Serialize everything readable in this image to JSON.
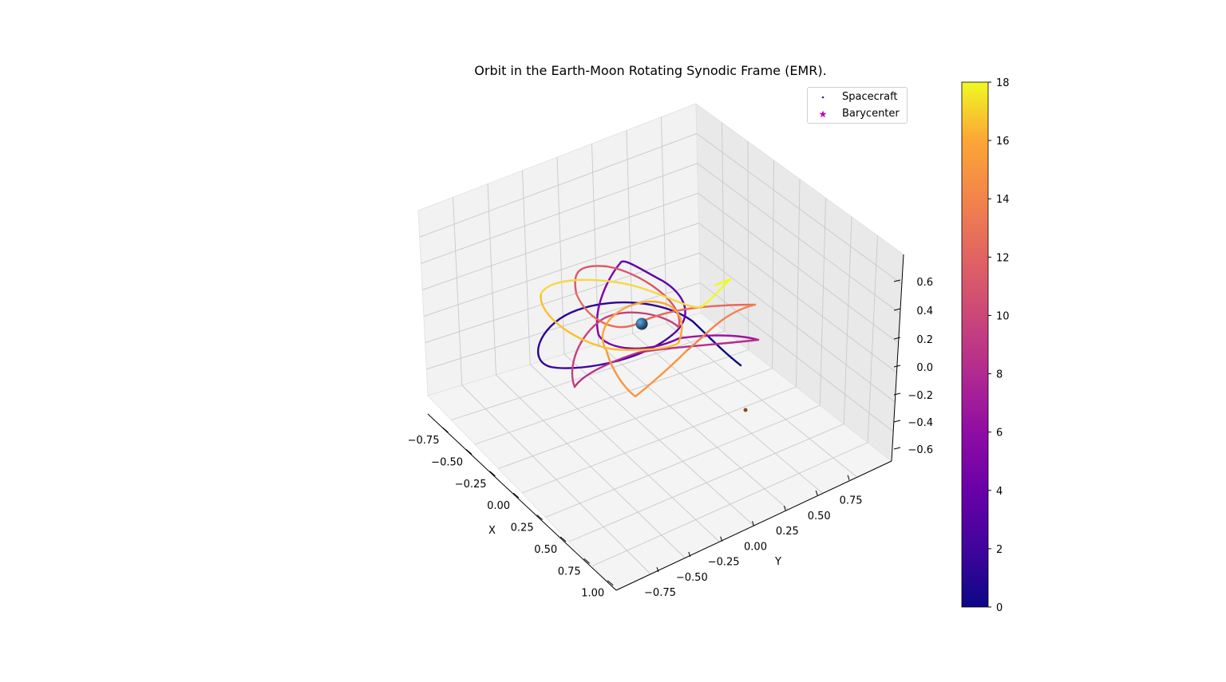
{
  "chart_data": {
    "type": "scatter",
    "projection": "3d",
    "title": "Orbit in the Earth-Moon Rotating Synodic Frame (EMR).",
    "xlabel": "X",
    "ylabel": "Y",
    "zlabel": "",
    "xlim": [
      -0.8,
      1.05
    ],
    "ylim": [
      -0.85,
      0.85
    ],
    "zlim": [
      -0.68,
      0.7
    ],
    "xticks": [
      "−0.75",
      "−0.50",
      "−0.25",
      "0.00",
      "0.25",
      "0.50",
      "0.75",
      "1.00"
    ],
    "yticks": [
      "−0.75",
      "−0.50",
      "−0.25",
      "0.00",
      "0.25",
      "0.50",
      "0.75"
    ],
    "zticks": [
      "−0.6",
      "−0.4",
      "−0.2",
      "0.0",
      "0.2",
      "0.4",
      "0.6"
    ],
    "grid": true,
    "legend": {
      "position": "top-right",
      "entries": [
        {
          "name": "Spacecraft",
          "marker": "dot",
          "color": "#2a2a8a"
        },
        {
          "name": "Barycenter",
          "marker": "star",
          "color": "#bf00bf"
        }
      ]
    },
    "colorbar": {
      "colormap": "plasma",
      "min": 0,
      "max": 18,
      "ticks": [
        "0",
        "2",
        "4",
        "6",
        "8",
        "10",
        "12",
        "14",
        "16",
        "18"
      ]
    },
    "series": [
      {
        "name": "Spacecraft",
        "color_by": "time",
        "t": [
          0,
          1.5,
          3,
          4.5,
          6,
          7.5,
          9,
          10.5,
          12,
          13.5,
          15,
          16.5,
          18
        ],
        "x": [
          0.87,
          0.55,
          -0.2,
          0.3,
          -0.15,
          -0.5,
          0.2,
          0.5,
          -0.05,
          0.4,
          -0.55,
          0.1,
          0.45
        ],
        "y": [
          -0.3,
          -0.35,
          0.1,
          -0.65,
          0.3,
          0.5,
          -0.4,
          -0.6,
          0.55,
          0.35,
          -0.05,
          0.6,
          -0.55
        ],
        "z": [
          -0.05,
          0.05,
          -0.1,
          0.15,
          0.5,
          0.3,
          -0.1,
          0.25,
          0.1,
          -0.2,
          0.1,
          0.15,
          0.35
        ]
      }
    ],
    "bodies": [
      {
        "name": "Earth",
        "x": -0.01,
        "y": 0.0,
        "z": 0.0,
        "color": "#2a5f8a"
      },
      {
        "name": "Barycenter",
        "x": 0.0,
        "y": 0.0,
        "z": 0.0,
        "color": "#bf00bf"
      },
      {
        "name": "Moon",
        "x": 0.99,
        "y": 0.0,
        "z": 0.0,
        "color": "#8a4a20"
      }
    ]
  }
}
